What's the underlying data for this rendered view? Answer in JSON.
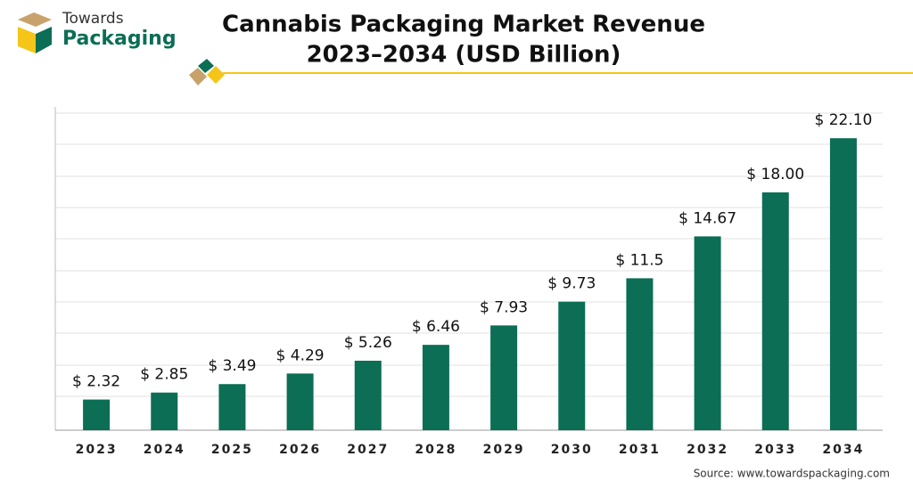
{
  "logo": {
    "line1": "Towards",
    "line2": "Packaging"
  },
  "chart_data": {
    "type": "bar",
    "title": [
      "Cannabis Packaging Market Revenue",
      "2023–2034 (USD Billion)"
    ],
    "categories": [
      "2023",
      "2024",
      "2025",
      "2026",
      "2027",
      "2028",
      "2029",
      "2030",
      "2031",
      "2032",
      "2033",
      "2034"
    ],
    "values": [
      2.32,
      2.85,
      3.49,
      4.29,
      5.26,
      6.46,
      7.93,
      9.73,
      11.5,
      14.67,
      18.0,
      22.1
    ],
    "value_labels": [
      "$ 2.32",
      "$ 2.85",
      "$ 3.49",
      "$ 4.29",
      "$ 5.26",
      "$ 6.46",
      "$ 7.93",
      "$ 9.73",
      "$ 11.5",
      "$ 14.67",
      "$ 18.00",
      "$ 22.10"
    ],
    "color": "#0b6e55",
    "ylim": [
      0,
      24
    ],
    "source": "Source: www.towardspackaging.com"
  }
}
